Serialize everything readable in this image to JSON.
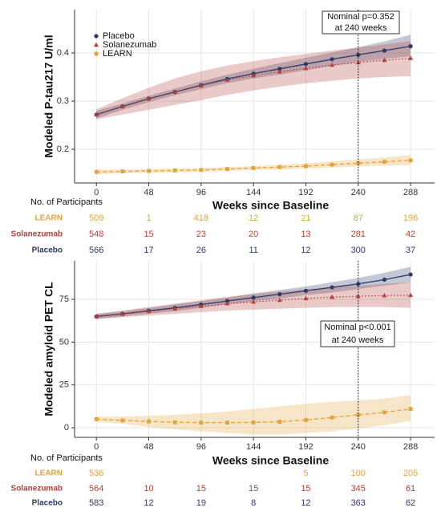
{
  "chart_data": [
    {
      "type": "line",
      "ylabel": "Modeled P-tau217 U/ml",
      "xlabel": "Weeks since Baseline",
      "x": [
        0,
        24,
        48,
        72,
        96,
        120,
        144,
        168,
        192,
        216,
        240,
        264,
        288
      ],
      "xlim": [
        -20,
        310
      ],
      "xticks": [
        0,
        48,
        96,
        144,
        192,
        240,
        288
      ],
      "ylim": [
        0.13,
        0.49
      ],
      "yticks": [
        0.2,
        0.3,
        0.4
      ],
      "grid": true,
      "legend": "upper left",
      "vline": 240,
      "annotation": [
        "Nominal p=0.352",
        "at 240 weeks"
      ],
      "series": [
        {
          "name": "Placebo",
          "color": "#2b3a67",
          "marker": "circle",
          "linestyle": "solid",
          "values": [
            0.272,
            0.289,
            0.305,
            0.319,
            0.333,
            0.346,
            0.357,
            0.367,
            0.377,
            0.387,
            0.396,
            0.405,
            0.414
          ],
          "upper": [
            0.28,
            0.295,
            0.311,
            0.326,
            0.341,
            0.355,
            0.367,
            0.379,
            0.39,
            0.401,
            0.412,
            0.424,
            0.438
          ],
          "lower": [
            0.264,
            0.282,
            0.298,
            0.312,
            0.325,
            0.337,
            0.347,
            0.355,
            0.364,
            0.373,
            0.381,
            0.388,
            0.393
          ]
        },
        {
          "name": "Solanezumab",
          "color": "#b5403a",
          "marker": "triangle",
          "linestyle": "dotted",
          "values": [
            0.272,
            0.289,
            0.305,
            0.319,
            0.332,
            0.344,
            0.353,
            0.361,
            0.368,
            0.375,
            0.38,
            0.385,
            0.389
          ],
          "upper": [
            0.283,
            0.306,
            0.328,
            0.347,
            0.362,
            0.374,
            0.383,
            0.391,
            0.398,
            0.405,
            0.411,
            0.418,
            0.425
          ],
          "lower": [
            0.262,
            0.272,
            0.282,
            0.292,
            0.302,
            0.313,
            0.322,
            0.33,
            0.337,
            0.342,
            0.347,
            0.35,
            0.352
          ]
        },
        {
          "name": "LEARN",
          "color": "#e3a33b",
          "marker": "square",
          "linestyle": "dashed",
          "values": [
            0.153,
            0.154,
            0.155,
            0.156,
            0.157,
            0.159,
            0.161,
            0.163,
            0.165,
            0.168,
            0.171,
            0.174,
            0.177
          ],
          "upper": [
            0.158,
            0.158,
            0.159,
            0.16,
            0.161,
            0.163,
            0.165,
            0.168,
            0.171,
            0.175,
            0.179,
            0.183,
            0.188
          ],
          "lower": [
            0.148,
            0.15,
            0.151,
            0.152,
            0.153,
            0.155,
            0.157,
            0.158,
            0.16,
            0.162,
            0.164,
            0.166,
            0.167
          ]
        }
      ],
      "participants": {
        "title": "No. of Participants",
        "rows": [
          {
            "name": "LEARN",
            "color": "#e3a33b",
            "values": [
              509,
              1,
              418,
              12,
              21,
              87,
              196
            ]
          },
          {
            "name": "Solanezumab",
            "color": "#b5403a",
            "values": [
              548,
              15,
              23,
              20,
              13,
              281,
              42
            ]
          },
          {
            "name": "Placebo",
            "color": "#2b3a67",
            "values": [
              566,
              17,
              26,
              11,
              12,
              300,
              37
            ]
          }
        ]
      }
    },
    {
      "type": "line",
      "ylabel": "Modeled amyloid PET CL",
      "xlabel": "Weeks since Baseline",
      "x": [
        0,
        24,
        48,
        72,
        96,
        120,
        144,
        168,
        192,
        216,
        240,
        264,
        288
      ],
      "xlim": [
        -20,
        310
      ],
      "xticks": [
        0,
        48,
        96,
        144,
        192,
        240,
        288
      ],
      "ylim": [
        -5.6,
        97.5
      ],
      "yticks": [
        0,
        25,
        50,
        75
      ],
      "grid": true,
      "vline": 240,
      "annotation": [
        "Nominal p<0.001",
        "at 240 weeks"
      ],
      "series": [
        {
          "color": "#2b3a67",
          "marker": "circle",
          "linestyle": "solid",
          "values": [
            65,
            66.5,
            68.3,
            70,
            72,
            74,
            76,
            78,
            80,
            82,
            84,
            86.5,
            89.5
          ],
          "upper": [
            66.5,
            68,
            70,
            72,
            74,
            76,
            78.5,
            80.5,
            82.5,
            85,
            87.5,
            90.5,
            94
          ],
          "lower": [
            63.5,
            65,
            66.6,
            68,
            70,
            72,
            73.8,
            75.5,
            77.5,
            79,
            81,
            83,
            85
          ]
        },
        {
          "color": "#b5403a",
          "marker": "triangle",
          "linestyle": "dotted",
          "values": [
            65,
            66.5,
            68,
            69.5,
            71,
            72.5,
            73.5,
            74.5,
            75.5,
            76.3,
            76.8,
            77.2,
            77.4
          ],
          "upper": [
            66.5,
            68.5,
            70.5,
            72.5,
            74.5,
            76.5,
            78,
            79.5,
            81,
            82,
            83,
            84,
            85
          ],
          "lower": [
            63.5,
            64.5,
            65.5,
            66.5,
            67.5,
            68.5,
            69,
            69.5,
            70,
            70.5,
            70.5,
            70.5,
            70
          ]
        },
        {
          "color": "#e3a33b",
          "marker": "square",
          "linestyle": "dashed",
          "values": [
            5,
            4.3,
            3.7,
            3.2,
            3.0,
            3.0,
            3.1,
            3.5,
            4.5,
            6,
            7.5,
            9,
            11
          ],
          "upper": [
            6.5,
            6.5,
            7,
            7.5,
            8.5,
            9.5,
            11,
            12.5,
            14,
            15,
            16,
            17,
            19
          ],
          "lower": [
            3.5,
            2.3,
            0.5,
            -1,
            -2,
            -3,
            -4,
            -4,
            -3,
            -2,
            -0.5,
            1.5,
            4
          ]
        }
      ],
      "participants": {
        "title": "No. of Participants",
        "rows": [
          {
            "name": "LEARN",
            "color": "#e3a33b",
            "values": [
              536,
              null,
              null,
              null,
              5,
              100,
              205
            ]
          },
          {
            "name": "Solanezumab",
            "color": "#b5403a",
            "values": [
              564,
              10,
              15,
              15,
              15,
              345,
              61
            ]
          },
          {
            "name": "Placebo",
            "color": "#2b3a67",
            "values": [
              583,
              12,
              19,
              8,
              12,
              363,
              62
            ]
          }
        ]
      }
    }
  ]
}
